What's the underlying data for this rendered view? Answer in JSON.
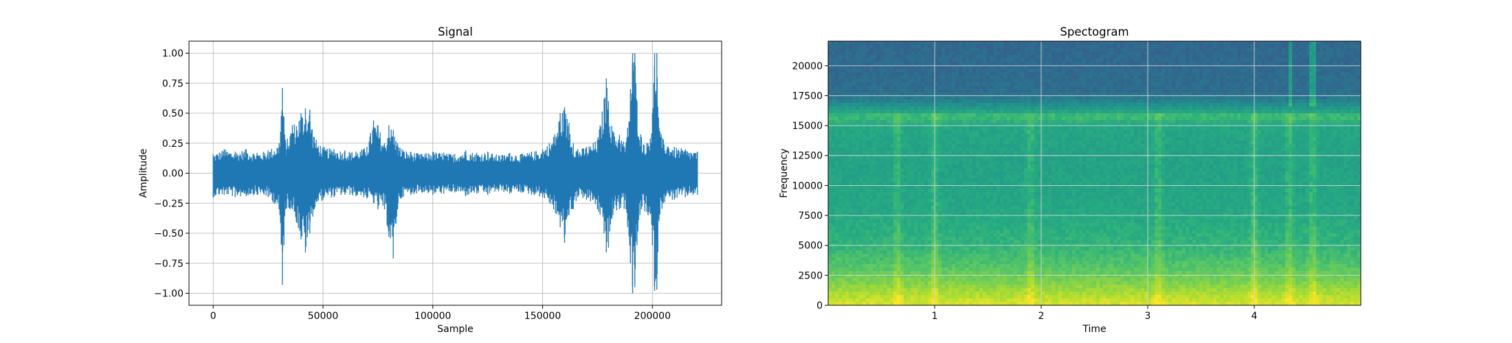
{
  "chart_data": [
    {
      "type": "line",
      "title": "Signal",
      "xlabel": "Sample",
      "ylabel": "Amplitude",
      "xlim": [
        -11025,
        231525
      ],
      "ylim": [
        -1.1,
        1.1
      ],
      "grid": true,
      "line_color": "#1f77b4",
      "num_samples": 220500,
      "xticks": [
        0,
        50000,
        100000,
        150000,
        200000
      ],
      "xtick_labels": [
        "0",
        "50000",
        "100000",
        "150000",
        "200000"
      ],
      "yticks": [
        1.0,
        0.75,
        0.5,
        0.25,
        0.0,
        -0.25,
        -0.5,
        -0.75,
        -1.0
      ],
      "ytick_labels": [
        "1.00",
        "0.75",
        "0.50",
        "0.25",
        "0.00",
        "−0.25",
        "−0.50",
        "−0.75",
        "−1.00"
      ],
      "envelope": {
        "x": [
          0,
          5000,
          10000,
          15000,
          20000,
          25000,
          30000,
          31500,
          33000,
          36000,
          40000,
          42000,
          44000,
          46000,
          50000,
          55000,
          60000,
          65000,
          70000,
          73000,
          75000,
          78000,
          80000,
          82000,
          84000,
          86000,
          90000,
          95000,
          100000,
          105000,
          110000,
          115000,
          120000,
          125000,
          130000,
          135000,
          140000,
          145000,
          150000,
          155000,
          158000,
          160000,
          162000,
          164000,
          166000,
          170000,
          175000,
          178000,
          179000,
          180000,
          182000,
          185000,
          188000,
          190000,
          191000,
          192000,
          193000,
          195000,
          198000,
          200000,
          201000,
          202000,
          203000,
          205000,
          210000,
          215000,
          220500
        ],
        "max": [
          0.16,
          0.2,
          0.18,
          0.2,
          0.17,
          0.19,
          0.25,
          0.71,
          0.25,
          0.4,
          0.5,
          0.54,
          0.53,
          0.3,
          0.22,
          0.2,
          0.19,
          0.18,
          0.22,
          0.44,
          0.4,
          0.25,
          0.4,
          0.36,
          0.25,
          0.2,
          0.18,
          0.16,
          0.18,
          0.17,
          0.16,
          0.19,
          0.17,
          0.18,
          0.15,
          0.17,
          0.16,
          0.18,
          0.2,
          0.3,
          0.5,
          0.55,
          0.42,
          0.25,
          0.2,
          0.22,
          0.28,
          0.62,
          0.79,
          0.6,
          0.35,
          0.32,
          0.25,
          0.7,
          1.0,
          1.0,
          0.6,
          0.3,
          0.25,
          0.5,
          1.0,
          1.0,
          0.38,
          0.28,
          0.22,
          0.2,
          0.18
        ],
        "min": [
          -0.2,
          -0.18,
          -0.2,
          -0.19,
          -0.18,
          -0.2,
          -0.3,
          -0.93,
          -0.3,
          -0.3,
          -0.55,
          -0.66,
          -0.5,
          -0.3,
          -0.22,
          -0.2,
          -0.18,
          -0.19,
          -0.21,
          -0.25,
          -0.3,
          -0.3,
          -0.53,
          -0.71,
          -0.3,
          -0.2,
          -0.18,
          -0.16,
          -0.18,
          -0.17,
          -0.16,
          -0.19,
          -0.17,
          -0.18,
          -0.15,
          -0.17,
          -0.16,
          -0.18,
          -0.2,
          -0.3,
          -0.45,
          -0.58,
          -0.35,
          -0.3,
          -0.2,
          -0.22,
          -0.3,
          -0.5,
          -0.66,
          -0.62,
          -0.35,
          -0.3,
          -0.3,
          -0.75,
          -1.0,
          -0.95,
          -0.6,
          -0.3,
          -0.35,
          -0.6,
          -0.98,
          -0.97,
          -0.4,
          -0.25,
          -0.22,
          -0.2,
          -0.18
        ]
      }
    },
    {
      "type": "heatmap",
      "title": "Spectogram",
      "xlabel": "Time",
      "ylabel": "Frequency",
      "xlim": [
        0,
        5.0
      ],
      "ylim": [
        0,
        22050
      ],
      "grid": true,
      "colormap": "viridis",
      "xticks": [
        1,
        2,
        3,
        4
      ],
      "xtick_labels": [
        "1",
        "2",
        "3",
        "4"
      ],
      "yticks": [
        0,
        2500,
        5000,
        7500,
        10000,
        12500,
        15000,
        17500,
        20000
      ],
      "ytick_labels": [
        "0",
        "2500",
        "5000",
        "7500",
        "10000",
        "12500",
        "15000",
        "17500",
        "20000"
      ],
      "intensity_profile": {
        "frequency": [
          0,
          1000,
          2000,
          3500,
          5000,
          8000,
          12000,
          15000,
          15800,
          16200,
          17000,
          17800,
          22050
        ],
        "level": [
          0.95,
          0.88,
          0.8,
          0.72,
          0.66,
          0.6,
          0.58,
          0.6,
          0.7,
          0.58,
          0.45,
          0.36,
          0.34
        ]
      },
      "bright_times": [
        0.65,
        1.0,
        1.9,
        3.1,
        4.0,
        4.33,
        4.55
      ]
    }
  ]
}
